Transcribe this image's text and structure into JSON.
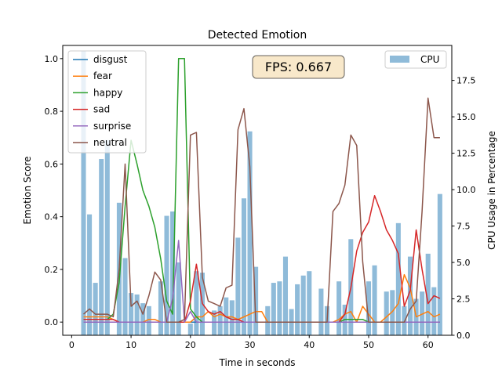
{
  "chart_data": {
    "type": "line",
    "title": "Detected Emotion",
    "xlabel": "Time in seconds",
    "ylabel": "Emotion Score",
    "y2label": "CPU Usage in Percentage",
    "xlim": [
      -1.5,
      64
    ],
    "ylim": [
      -0.05,
      1.05
    ],
    "y2lim": [
      0,
      19.9
    ],
    "xticks": [
      "0",
      "10",
      "20",
      "30",
      "40",
      "50",
      "60"
    ],
    "yticks": [
      "0.0",
      "0.2",
      "0.4",
      "0.6",
      "0.8",
      "1.0"
    ],
    "y2ticks": [
      "0.0",
      "2.5",
      "5.0",
      "7.5",
      "10.0",
      "12.5",
      "15.0",
      "17.5"
    ],
    "legend_left": "top-left",
    "legend_right": "top-right",
    "annotation": "FPS: 0.667",
    "x": [
      2,
      3,
      4,
      5,
      6,
      7,
      8,
      9,
      10,
      11,
      12,
      13,
      14,
      15,
      16,
      17,
      18,
      19,
      20,
      21,
      22,
      23,
      24,
      25,
      26,
      27,
      28,
      29,
      30,
      31,
      32,
      33,
      34,
      35,
      36,
      37,
      38,
      39,
      40,
      41,
      42,
      43,
      44,
      45,
      46,
      47,
      48,
      49,
      50,
      51,
      52,
      53,
      54,
      55,
      56,
      57,
      58,
      59,
      60,
      61,
      62
    ],
    "series": [
      {
        "name": "disgust",
        "color": "#1f77b4",
        "values": [
          0.0,
          0.0,
          0.0,
          0.0,
          0.0,
          0.0,
          0.0,
          0.0,
          0.0,
          0.0,
          0.0,
          0.0,
          0.0,
          0.0,
          0.0,
          0.0,
          0.0,
          0.0,
          0.0,
          0.0,
          0.0,
          0.0,
          0.0,
          0.0,
          0.0,
          0.0,
          0.0,
          0.0,
          0.0,
          0.0,
          0.0,
          0.0,
          0.0,
          0.0,
          0.0,
          0.0,
          0.0,
          0.0,
          0.0,
          0.0,
          0.0,
          0.0,
          0.0,
          0.0,
          0.0,
          0.0,
          0.0,
          0.0,
          0.0,
          0.0,
          0.0,
          0.0,
          0.0,
          0.0,
          0.0,
          0.0,
          0.0,
          0.0,
          0.0,
          0.0,
          0.0
        ]
      },
      {
        "name": "fear",
        "color": "#ff7f0e",
        "values": [
          0.02,
          0.02,
          0.02,
          0.02,
          0.02,
          0.01,
          0.0,
          0.0,
          0.0,
          0.0,
          0.0,
          0.01,
          0.01,
          0.0,
          0.0,
          0.0,
          0.0,
          0.0,
          0.0,
          0.02,
          0.02,
          0.04,
          0.02,
          0.03,
          0.02,
          0.02,
          0.01,
          0.02,
          0.03,
          0.04,
          0.04,
          0.0,
          0.0,
          0.0,
          0.0,
          0.0,
          0.0,
          0.0,
          0.0,
          0.0,
          0.0,
          0.0,
          0.0,
          0.01,
          0.03,
          0.04,
          0.0,
          0.06,
          0.03,
          0.0,
          0.0,
          0.02,
          0.04,
          0.07,
          0.18,
          0.13,
          0.02,
          0.03,
          0.04,
          0.02,
          0.03
        ]
      },
      {
        "name": "happy",
        "color": "#2ca02c",
        "values": [
          0.01,
          0.01,
          0.01,
          0.01,
          0.01,
          0.03,
          0.15,
          0.44,
          0.69,
          0.6,
          0.5,
          0.44,
          0.36,
          0.24,
          0.08,
          0.03,
          1.0,
          1.0,
          0.05,
          0.02,
          0.0,
          0.0,
          0.0,
          0.0,
          0.0,
          0.0,
          0.0,
          0.0,
          0.0,
          0.0,
          0.0,
          0.0,
          0.0,
          0.0,
          0.0,
          0.0,
          0.0,
          0.0,
          0.0,
          0.0,
          0.0,
          0.0,
          0.0,
          0.0,
          0.01,
          0.01,
          0.01,
          0.01,
          0.0,
          0.0,
          0.0,
          0.0,
          0.0,
          0.0,
          0.0,
          0.0,
          0.0,
          0.0,
          0.0,
          0.0,
          0.0
        ]
      },
      {
        "name": "sad",
        "color": "#d62728",
        "values": [
          0.01,
          0.01,
          0.01,
          0.01,
          0.01,
          0.01,
          0.0,
          0.0,
          0.0,
          0.0,
          0.0,
          0.0,
          0.0,
          0.0,
          0.0,
          0.0,
          0.0,
          0.0,
          0.08,
          0.22,
          0.07,
          0.04,
          0.03,
          0.04,
          0.02,
          0.01,
          0.01,
          0.0,
          0.0,
          0.0,
          0.0,
          0.0,
          0.0,
          0.0,
          0.0,
          0.0,
          0.0,
          0.0,
          0.0,
          0.0,
          0.0,
          0.0,
          0.0,
          0.0,
          0.03,
          0.13,
          0.27,
          0.34,
          0.38,
          0.48,
          0.42,
          0.35,
          0.31,
          0.26,
          0.06,
          0.12,
          0.35,
          0.2,
          0.07,
          0.1,
          0.09
        ]
      },
      {
        "name": "surprise",
        "color": "#9467bd",
        "values": [
          0.0,
          0.0,
          0.0,
          0.0,
          0.0,
          0.0,
          0.0,
          0.0,
          0.0,
          0.0,
          0.0,
          0.0,
          0.0,
          0.0,
          0.0,
          0.09,
          0.31,
          0.0,
          0.04,
          0.0,
          0.0,
          0.0,
          0.0,
          0.0,
          0.0,
          0.0,
          0.0,
          0.0,
          0.0,
          0.0,
          0.0,
          0.0,
          0.0,
          0.0,
          0.0,
          0.0,
          0.0,
          0.0,
          0.0,
          0.0,
          0.0,
          0.0,
          0.0,
          0.0,
          0.0,
          0.0,
          0.0,
          0.0,
          0.0,
          0.0,
          0.0,
          0.0,
          0.0,
          0.0,
          0.0,
          0.0,
          0.0,
          0.0,
          0.0,
          0.0,
          0.0
        ]
      },
      {
        "name": "neutral",
        "color": "#8c564b",
        "values": [
          0.03,
          0.05,
          0.03,
          0.03,
          0.03,
          0.02,
          0.2,
          0.6,
          0.06,
          0.08,
          0.03,
          0.1,
          0.19,
          0.16,
          0.0,
          0.0,
          0.0,
          0.01,
          0.71,
          0.72,
          0.17,
          0.08,
          0.07,
          0.06,
          0.13,
          0.14,
          0.73,
          0.81,
          0.59,
          0.0,
          0.0,
          0.0,
          0.0,
          0.0,
          0.0,
          0.0,
          0.0,
          0.0,
          0.0,
          0.0,
          0.0,
          0.0,
          0.42,
          0.45,
          0.52,
          0.71,
          0.67,
          0.23,
          0.0,
          0.0,
          0.0,
          0.0,
          0.0,
          0.0,
          0.0,
          0.05,
          0.08,
          0.42,
          0.85,
          0.7,
          0.7
        ]
      }
    ],
    "cpu": {
      "name": "CPU",
      "color": "#1f77b4",
      "opacity": 0.5,
      "values": [
        19.5,
        8.3,
        3.6,
        12.1,
        13.4,
        0.0,
        9.1,
        5.3,
        2.9,
        2.8,
        2.2,
        2.0,
        0.0,
        3.7,
        8.2,
        8.5,
        5.0,
        0.0,
        0.8,
        4.4,
        4.3,
        0.0,
        1.7,
        2.0,
        2.6,
        2.4,
        6.7,
        9.4,
        14.0,
        4.7,
        0.0,
        2.0,
        3.6,
        3.7,
        5.4,
        1.8,
        3.5,
        4.1,
        4.4,
        0.0,
        3.2,
        2.0,
        0.0,
        3.7,
        2.1,
        6.6,
        0.0,
        0.0,
        3.7,
        4.8,
        0.0,
        3.0,
        3.1,
        7.7,
        2.0,
        5.4,
        2.5,
        3.0,
        5.6,
        3.3,
        9.7
      ]
    }
  }
}
